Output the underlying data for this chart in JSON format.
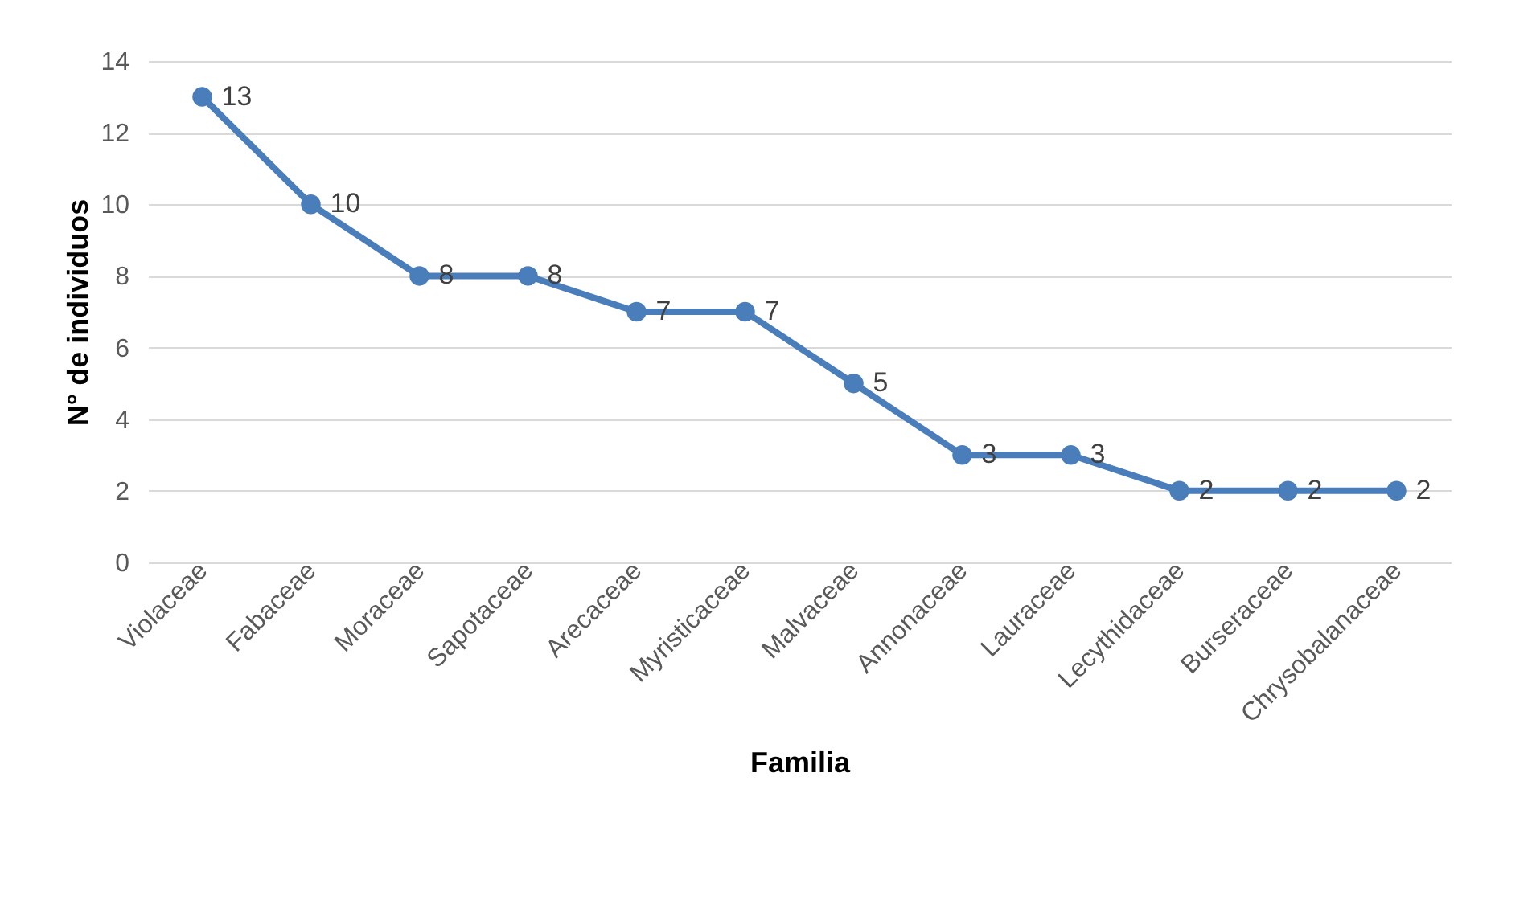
{
  "chart_data": {
    "type": "line",
    "xlabel": "Familia",
    "ylabel": "N° de individuos",
    "categories": [
      "Violaceae",
      "Fabaceae",
      "Moraceae",
      "Sapotaceae",
      "Arecaceae",
      "Myristicaceae",
      "Malvaceae",
      "Annonaceae",
      "Lauraceae",
      "Lecythidaceae",
      "Burseraceae",
      "Chrysobalanaceae"
    ],
    "series": [
      {
        "color": "#4a7ebb",
        "values": [
          13,
          10,
          8,
          8,
          7,
          7,
          5,
          3,
          3,
          2,
          2,
          2
        ]
      }
    ],
    "ylim": [
      0,
      14
    ],
    "yticks": [
      0,
      2,
      4,
      6,
      8,
      10,
      12,
      14
    ],
    "grid": "y",
    "marker": "circle",
    "line_style": "solid",
    "data_labels": true,
    "legend": false
  }
}
